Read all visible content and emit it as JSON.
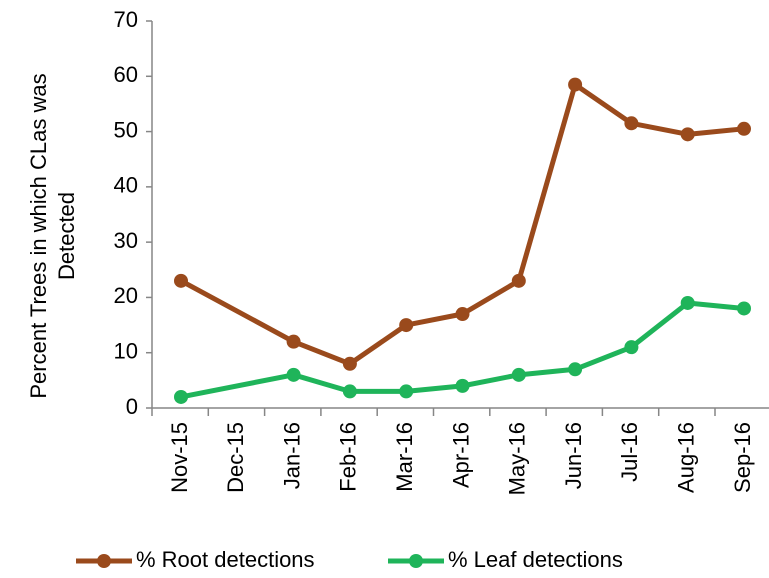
{
  "chart_data": {
    "type": "line",
    "ylabel": [
      "Percent Trees in which CLas was",
      "Detected"
    ],
    "categories": [
      "Nov-15",
      "Dec-15",
      "Jan-16",
      "Feb-16",
      "Mar-16",
      "Apr-16",
      "May-16",
      "Jun-16",
      "Jul-16",
      "Aug-16",
      "Sep-16"
    ],
    "series": [
      {
        "name": "% Root detections",
        "color": "#9a4a1c",
        "x": [
          "Nov-15",
          "Jan-16",
          "Feb-16",
          "Mar-16",
          "Apr-16",
          "May-16",
          "Jun-16",
          "Jul-16",
          "Aug-16",
          "Sep-16"
        ],
        "values": [
          23,
          12,
          8,
          15,
          17,
          23,
          58.5,
          51.5,
          49.5,
          50.5
        ]
      },
      {
        "name": "% Leaf detections",
        "color": "#1fb45a",
        "x": [
          "Nov-15",
          "Jan-16",
          "Feb-16",
          "Mar-16",
          "Apr-16",
          "May-16",
          "Jun-16",
          "Jul-16",
          "Aug-16",
          "Sep-16"
        ],
        "values": [
          2,
          6,
          3,
          3,
          4,
          6,
          7,
          11,
          19,
          18
        ]
      }
    ],
    "ylim": [
      0,
      70
    ],
    "yticks": [
      0,
      10,
      20,
      30,
      40,
      50,
      60,
      70
    ],
    "grid": false,
    "legend": "bottom"
  }
}
